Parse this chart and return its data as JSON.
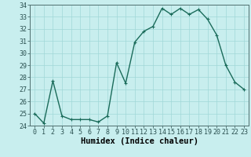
{
  "x": [
    0,
    1,
    2,
    3,
    4,
    5,
    6,
    7,
    8,
    9,
    10,
    11,
    12,
    13,
    14,
    15,
    16,
    17,
    18,
    19,
    20,
    21,
    22,
    23
  ],
  "y": [
    25.0,
    24.2,
    27.7,
    24.8,
    24.5,
    24.5,
    24.5,
    24.3,
    24.8,
    29.2,
    27.5,
    30.9,
    31.8,
    32.2,
    33.7,
    33.2,
    33.7,
    33.2,
    33.6,
    32.8,
    31.5,
    29.0,
    27.6,
    27.0
  ],
  "xlabel": "Humidex (Indice chaleur)",
  "ylim": [
    24,
    34
  ],
  "xlim_min": -0.5,
  "xlim_max": 23.5,
  "yticks": [
    24,
    25,
    26,
    27,
    28,
    29,
    30,
    31,
    32,
    33,
    34
  ],
  "xtick_labels": [
    "0",
    "1",
    "2",
    "3",
    "4",
    "5",
    "6",
    "7",
    "8",
    "9",
    "10",
    "11",
    "12",
    "13",
    "14",
    "15",
    "16",
    "17",
    "18",
    "19",
    "20",
    "21",
    "22",
    "23"
  ],
  "line_color": "#1a6b5a",
  "marker": "+",
  "bg_color": "#c8eeee",
  "grid_color": "#a0d8d8",
  "spine_color": "#507070",
  "xlabel_fontsize": 7.5,
  "tick_fontsize": 6.0,
  "linewidth": 1.0,
  "markersize": 3.5,
  "markeredgewidth": 0.8
}
